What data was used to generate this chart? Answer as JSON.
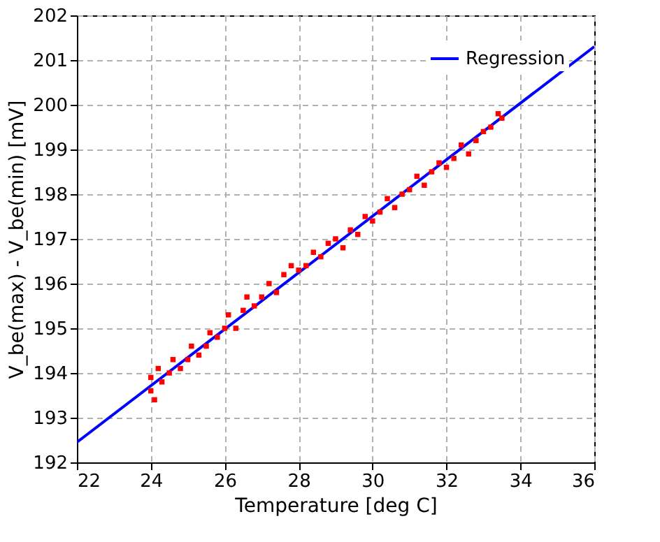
{
  "chart_data": {
    "type": "scatter",
    "xlabel": "Temperature [deg C]",
    "ylabel": "V_be(max) - V_be(min) [mV]",
    "xlim": [
      22,
      36
    ],
    "ylim": [
      192,
      202
    ],
    "xticks": [
      22,
      24,
      26,
      28,
      30,
      32,
      34,
      36
    ],
    "yticks": [
      192,
      193,
      194,
      195,
      196,
      197,
      198,
      199,
      200,
      201,
      202
    ],
    "grid": true,
    "legend": "top right",
    "series": [
      {
        "type": "scatter",
        "color": "#ff0000",
        "marker": "square",
        "x": [
          24.0,
          24.0,
          24.1,
          24.2,
          24.3,
          24.5,
          24.6,
          24.8,
          25.0,
          25.1,
          25.3,
          25.5,
          25.6,
          25.8,
          26.0,
          26.1,
          26.3,
          26.5,
          26.6,
          26.8,
          27.0,
          27.2,
          27.4,
          27.6,
          27.8,
          28.0,
          28.2,
          28.4,
          28.6,
          28.8,
          29.0,
          29.2,
          29.4,
          29.6,
          29.8,
          30.0,
          30.2,
          30.4,
          30.6,
          30.8,
          31.0,
          31.2,
          31.4,
          31.6,
          31.8,
          32.0,
          32.2,
          32.4,
          32.6,
          32.8,
          33.0,
          33.2,
          33.4,
          33.5
        ],
        "values": [
          193.6,
          193.9,
          193.4,
          194.1,
          193.8,
          194.0,
          194.3,
          194.1,
          194.3,
          194.6,
          194.4,
          194.6,
          194.9,
          194.8,
          195.0,
          195.3,
          195.0,
          195.4,
          195.7,
          195.5,
          195.7,
          196.0,
          195.8,
          196.2,
          196.4,
          196.3,
          196.4,
          196.7,
          196.6,
          196.9,
          197.0,
          196.8,
          197.2,
          197.1,
          197.5,
          197.4,
          197.6,
          197.9,
          197.7,
          198.0,
          198.1,
          198.4,
          198.2,
          198.5,
          198.7,
          198.6,
          198.8,
          199.1,
          198.9,
          199.2,
          199.4,
          199.5,
          199.8,
          199.7
        ]
      },
      {
        "type": "line",
        "name": "Regression",
        "color": "#0000ff",
        "line_style": "solid",
        "x": [
          22,
          36
        ],
        "values": [
          192.45,
          201.3
        ]
      }
    ]
  }
}
